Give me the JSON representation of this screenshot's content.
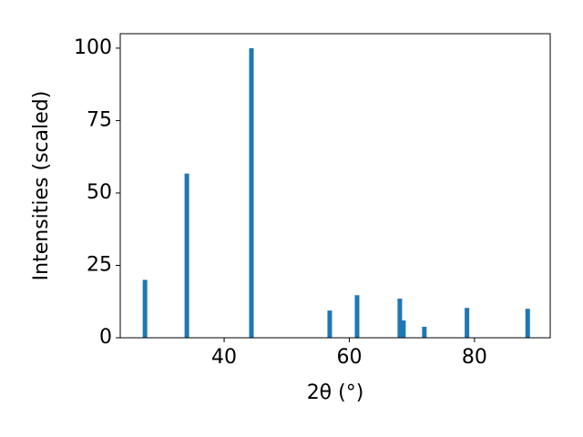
{
  "chart_data": {
    "type": "bar",
    "x_label": "2θ (°)",
    "y_label": "Intensities (scaled)",
    "x": [
      27.35,
      34.04,
      44.36,
      56.87,
      61.24,
      68.07,
      68.65,
      71.99,
      78.8,
      88.5
    ],
    "values": [
      20,
      56.7,
      100,
      9.4,
      14.7,
      13.5,
      6.0,
      3.8,
      10.3,
      10.0
    ],
    "color": "#1f77b4",
    "xlim": [
      23.4,
      92.1
    ],
    "xticks": [
      40,
      60,
      80
    ],
    "ylim": [
      0,
      105
    ],
    "yticks": [
      0,
      25,
      50,
      75,
      100
    ]
  }
}
